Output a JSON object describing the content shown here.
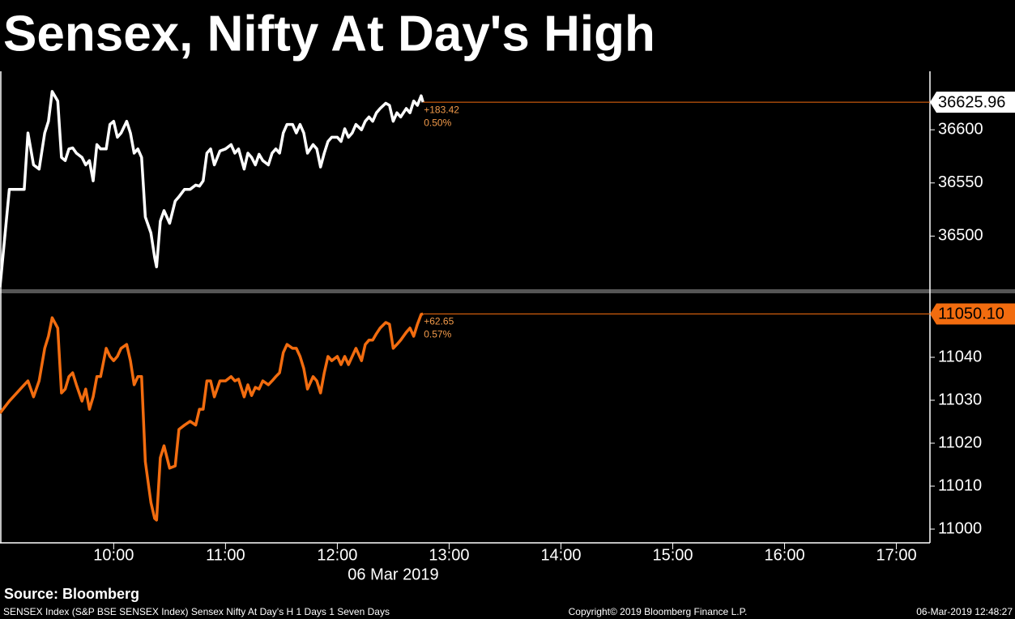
{
  "title": "Sensex, Nifty At Day's High",
  "source": "Source: Bloomberg",
  "footer": {
    "left": "SENSEX Index (S&P BSE SENSEX Index) Sensex Nifty At Day's H 1 Days 1 Seven Days",
    "center": "Copyright© 2019 Bloomberg Finance L.P.",
    "right": "06-Mar-2019 12:48:27"
  },
  "chart_data": [
    {
      "type": "line",
      "color": "#ffffff",
      "x": [
        539,
        544,
        552,
        554,
        557,
        560,
        563,
        565,
        567,
        570,
        572,
        574,
        576,
        578,
        580,
        583,
        585,
        587,
        589,
        591,
        593,
        596,
        598,
        600,
        602,
        604,
        607,
        609,
        611,
        613,
        615,
        617,
        620,
        622,
        623,
        625,
        627,
        630,
        633,
        635,
        638,
        641,
        644,
        646,
        648,
        650,
        652,
        654,
        657,
        660,
        663,
        665,
        667,
        670,
        672,
        674,
        676,
        678,
        680,
        683,
        685,
        687,
        689,
        691,
        693,
        696,
        698,
        700,
        702,
        704,
        707,
        709,
        711,
        713,
        715,
        717,
        720,
        722,
        724,
        726,
        728,
        730,
        733,
        735,
        737,
        739,
        741,
        743,
        746,
        748,
        750,
        752,
        754,
        757,
        759,
        761,
        763,
        765,
        766
      ],
      "values": [
        36452,
        36544,
        36544,
        36597,
        36567,
        36563,
        36597,
        36608,
        36636,
        36627,
        36574,
        36571,
        36582,
        36583,
        36578,
        36574,
        36567,
        36571,
        36552,
        36586,
        36582,
        36582,
        36605,
        36608,
        36593,
        36597,
        36608,
        36597,
        36578,
        36582,
        36574,
        36518,
        36503,
        36480,
        36471,
        36514,
        36524,
        36512,
        36533,
        36537,
        36544,
        36544,
        36548,
        36547,
        36552,
        36578,
        36582,
        36567,
        36580,
        36582,
        36586,
        36578,
        36582,
        36563,
        36578,
        36574,
        36567,
        36577,
        36571,
        36567,
        36578,
        36582,
        36578,
        36597,
        36605,
        36605,
        36597,
        36605,
        36597,
        36578,
        36586,
        36582,
        36565,
        36578,
        36589,
        36593,
        36593,
        36589,
        36601,
        36593,
        36597,
        36605,
        36600,
        36608,
        36612,
        36608,
        36616,
        36620,
        36625,
        36623,
        36608,
        36616,
        36612,
        36620,
        36616,
        36627,
        36623,
        36632,
        36626
      ],
      "xlim": [
        539,
        1038
      ],
      "ylim": [
        36450,
        36655
      ],
      "yticks": [
        36500,
        36550,
        36600
      ],
      "last_value": 36625.96,
      "change": "+183.42",
      "change_pct": "0.50%",
      "label_color": "#ffffff"
    },
    {
      "type": "line",
      "color": "#f26c0f",
      "x": [
        539,
        544,
        552,
        554,
        557,
        560,
        563,
        565,
        567,
        570,
        572,
        574,
        576,
        578,
        580,
        583,
        585,
        587,
        589,
        591,
        593,
        596,
        598,
        600,
        602,
        604,
        607,
        609,
        611,
        613,
        615,
        617,
        620,
        622,
        623,
        625,
        627,
        630,
        633,
        635,
        638,
        641,
        644,
        646,
        648,
        650,
        652,
        654,
        657,
        660,
        663,
        665,
        667,
        670,
        672,
        674,
        676,
        678,
        680,
        683,
        685,
        687,
        689,
        691,
        693,
        696,
        698,
        700,
        702,
        704,
        707,
        709,
        711,
        713,
        715,
        717,
        720,
        722,
        724,
        726,
        728,
        730,
        733,
        735,
        737,
        739,
        741,
        743,
        746,
        748,
        750,
        752,
        754,
        757,
        759,
        761,
        763,
        765,
        766
      ],
      "values": [
        11027,
        11029.8,
        11033.6,
        11034.5,
        11030.8,
        11034.5,
        11042.1,
        11044.9,
        11049.2,
        11046.8,
        11031.7,
        11032.6,
        11035.5,
        11036.4,
        11033.6,
        11029.8,
        11032.6,
        11027.9,
        11030.8,
        11035.5,
        11035.5,
        11042.1,
        11040.2,
        11039.2,
        11040.2,
        11042.1,
        11043,
        11039.2,
        11033.6,
        11035.5,
        11035.5,
        11015.7,
        11006.2,
        11002.5,
        11002.1,
        11016.6,
        11019.4,
        11014.2,
        11014.7,
        11023.2,
        11024.2,
        11025.1,
        11024.2,
        11027.9,
        11027.9,
        11034.5,
        11034.5,
        11030.8,
        11034.5,
        11034.5,
        11035.5,
        11034.5,
        11034.9,
        11030.8,
        11033.6,
        11031.1,
        11033,
        11032.6,
        11034.5,
        11033.6,
        11034.5,
        11035.5,
        11036.4,
        11041.1,
        11043,
        11042.1,
        11042.1,
        11040.2,
        11037.4,
        11032.6,
        11035.5,
        11034.5,
        11031.7,
        11036.4,
        11040.2,
        11039.2,
        11040.2,
        11038.3,
        11040.2,
        11038.3,
        11040.2,
        11042.1,
        11039.2,
        11043,
        11044,
        11044,
        11045.5,
        11046.8,
        11048.1,
        11047.7,
        11042.1,
        11043,
        11044,
        11045.8,
        11046.8,
        11044.9,
        11047.7,
        11050,
        11050.1
      ],
      "xlim": [
        539,
        1038
      ],
      "ylim": [
        10996.8,
        11054.9
      ],
      "yticks": [
        11000,
        11010,
        11020,
        11030,
        11040
      ],
      "xticks": [
        {
          "value": 600,
          "label": "10:00"
        },
        {
          "value": 660,
          "label": "11:00"
        },
        {
          "value": 720,
          "label": "12:00"
        },
        {
          "value": 780,
          "label": "13:00"
        },
        {
          "value": 840,
          "label": "14:00"
        },
        {
          "value": 900,
          "label": "15:00"
        },
        {
          "value": 960,
          "label": "16:00"
        },
        {
          "value": 1020,
          "label": "17:00"
        }
      ],
      "xlabel": "06 Mar 2019",
      "last_value": {
        "value": 11050.1,
        "label": "11050.10"
      },
      "change": "+62.65",
      "change_pct": "0.57%",
      "label_color": "#f26c0f"
    }
  ]
}
